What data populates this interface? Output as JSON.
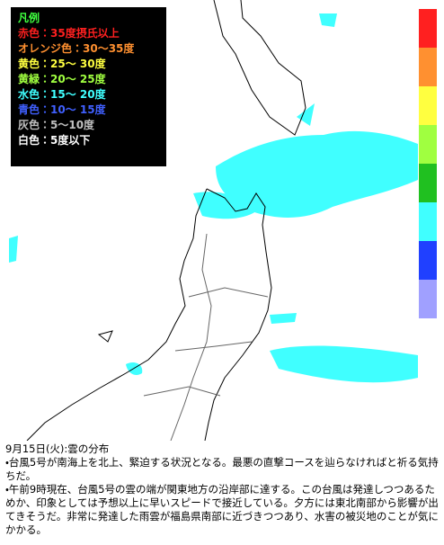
{
  "legend": {
    "title": "凡例",
    "items": [
      {
        "label": "赤色：35度摂氏以上",
        "color": "#ff2020"
      },
      {
        "label": "オレンジ色：30〜35度",
        "color": "#ff9030"
      },
      {
        "label": "黄色：25〜 30度",
        "color": "#ffff40"
      },
      {
        "label": "黄緑：20〜 25度",
        "color": "#a0ff40"
      },
      {
        "label": "水色：15〜 20度",
        "color": "#40ffff"
      },
      {
        "label": "青色：10〜 15度",
        "color": "#4060ff"
      },
      {
        "label": "灰色：5〜10度",
        "color": "#c0c0c0"
      },
      {
        "label": "白色：5度以下",
        "color": "#ffffff"
      }
    ]
  },
  "caption": {
    "title": "9月15日(火):雲の分布",
    "bullets": [
      "・台風5号が南海上を北上、緊迫する状況となる。最悪の直撃コースを辿らなければと祈る気持ちだ。",
      "・午前9時現在、台風5号の雲の端が関東地方の沿岸部に達する。この台風は発達しつつあるためか、印象としては予想以上に早いスピードで接近している。夕方には東北南部から影響が出てきそうだ。非常に発達した雨雲が福島県南部に近づきつつあり、水害の被災地のことが気にかかる。"
    ]
  }
}
